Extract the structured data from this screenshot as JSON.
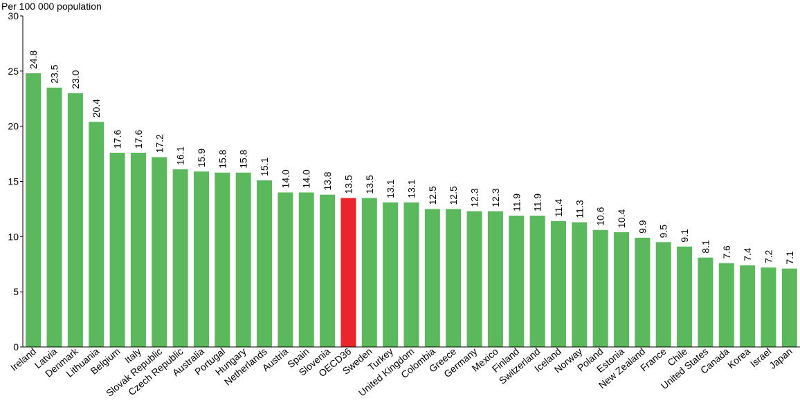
{
  "chart_data": {
    "type": "bar",
    "ylabel": "Per 100 000 population",
    "ylim": [
      0,
      30
    ],
    "yticks": [
      0,
      5,
      10,
      15,
      20,
      25,
      30
    ],
    "grid": true,
    "categories": [
      "Ireland",
      "Latvia",
      "Denmark",
      "Lithuania",
      "Belgium",
      "Italy",
      "Slovak Republic",
      "Czech Republic",
      "Australia",
      "Portugal",
      "Hungary",
      "Netherlands",
      "Austria",
      "Spain",
      "Slovenia",
      "OECD36",
      "Sweden",
      "Turkey",
      "United Kingdom",
      "Colombia",
      "Greece",
      "Germany",
      "Mexico",
      "Finland",
      "Switzerland",
      "Iceland",
      "Norway",
      "Poland",
      "Estonia",
      "New Zealand",
      "France",
      "Chile",
      "United States",
      "Canada",
      "Korea",
      "Israel",
      "Japan"
    ],
    "values": [
      24.8,
      23.5,
      23.0,
      20.4,
      17.6,
      17.6,
      17.2,
      16.1,
      15.9,
      15.8,
      15.8,
      15.1,
      14.0,
      14.0,
      13.8,
      13.5,
      13.5,
      13.1,
      13.1,
      12.5,
      12.5,
      12.3,
      12.3,
      11.9,
      11.9,
      11.4,
      11.3,
      10.6,
      10.4,
      9.9,
      9.5,
      9.1,
      8.1,
      7.6,
      7.4,
      7.2,
      7.1
    ],
    "value_labels": [
      "24.8",
      "23.5",
      "23.0",
      "20.4",
      "17.6",
      "17.6",
      "17.2",
      "16.1",
      "15.9",
      "15.8",
      "15.8",
      "15.1",
      "14.0",
      "14.0",
      "13.8",
      "13.5",
      "13.5",
      "13.1",
      "13.1",
      "12.5",
      "12.5",
      "12.3",
      "12.3",
      "11.9",
      "11.9",
      "11.4",
      "11.3",
      "10.6",
      "10.4",
      "9.9",
      "9.5",
      "9.1",
      "8.1",
      "7.6",
      "7.4",
      "7.2",
      "7.1"
    ],
    "highlight_category": "OECD36",
    "colors": {
      "bar": "#5cb85c",
      "highlight": "#e8262b",
      "grid": "#ffffff",
      "background": "#ffffff",
      "plot_bg": "#ffffff"
    }
  }
}
